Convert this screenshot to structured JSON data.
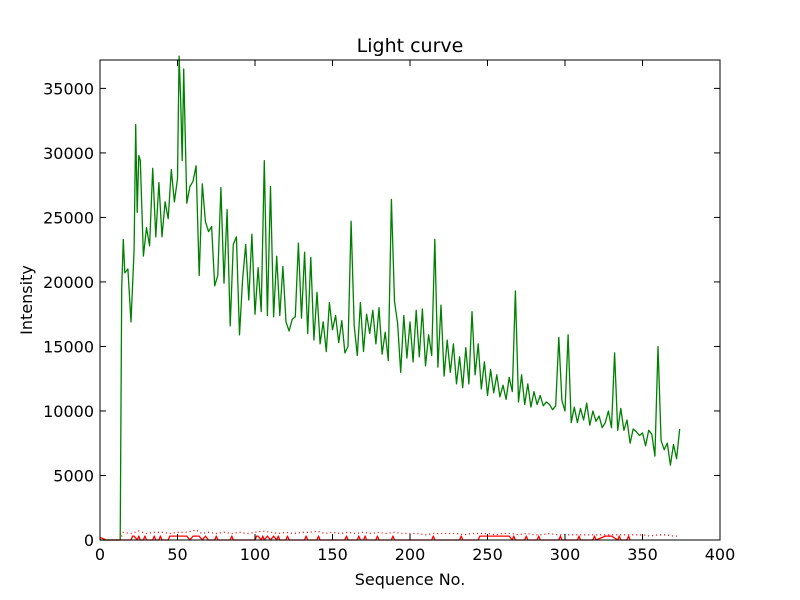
{
  "chart_data": {
    "type": "line",
    "title": "Light curve",
    "xlabel": "Sequence No.",
    "ylabel": "Intensity",
    "xlim": [
      0,
      400
    ],
    "ylim": [
      0,
      37200
    ],
    "grid": false,
    "x_ticks": [
      0,
      50,
      100,
      150,
      200,
      250,
      300,
      350,
      400
    ],
    "x_tick_labels": [
      "0",
      "50",
      "100",
      "150",
      "200",
      "250",
      "300",
      "350",
      "400"
    ],
    "y_ticks": [
      0,
      5000,
      10000,
      15000,
      20000,
      25000,
      30000,
      35000
    ],
    "y_tick_labels": [
      "0",
      "5000",
      "10000",
      "15000",
      "20000",
      "25000",
      "30000",
      "35000"
    ],
    "series": [
      {
        "color": "#008000",
        "style": "solid",
        "x": [
          0,
          5,
          10,
          13,
          14,
          15,
          16,
          18,
          20,
          22,
          23,
          24,
          25,
          26,
          28,
          30,
          32,
          34,
          36,
          38,
          40,
          42,
          44,
          46,
          48,
          50,
          51,
          52,
          53,
          54,
          56,
          58,
          60,
          62,
          64,
          66,
          68,
          70,
          72,
          74,
          76,
          78,
          80,
          82,
          84,
          86,
          88,
          90,
          92,
          94,
          96,
          98,
          100,
          102,
          104,
          106,
          108,
          110,
          112,
          114,
          116,
          118,
          120,
          122,
          124,
          126,
          128,
          130,
          132,
          134,
          136,
          138,
          140,
          142,
          144,
          146,
          148,
          150,
          152,
          154,
          156,
          158,
          160,
          162,
          164,
          166,
          168,
          170,
          172,
          174,
          176,
          178,
          180,
          182,
          184,
          186,
          188,
          190,
          192,
          194,
          196,
          198,
          200,
          202,
          204,
          206,
          208,
          210,
          212,
          214,
          216,
          218,
          220,
          222,
          224,
          226,
          228,
          230,
          232,
          234,
          236,
          238,
          240,
          242,
          244,
          246,
          248,
          250,
          252,
          254,
          256,
          258,
          260,
          262,
          264,
          266,
          268,
          270,
          272,
          274,
          276,
          278,
          280,
          282,
          284,
          286,
          288,
          290,
          292,
          294,
          296,
          298,
          300,
          302,
          304,
          306,
          308,
          310,
          312,
          314,
          316,
          318,
          320,
          322,
          324,
          326,
          328,
          330,
          332,
          334,
          336,
          338,
          340,
          342,
          344,
          346,
          348,
          350,
          352,
          354,
          356,
          358,
          360,
          362,
          364,
          366,
          368,
          370,
          372,
          374
        ],
        "y": [
          0,
          0,
          0,
          0,
          19500,
          23300,
          20700,
          21000,
          16900,
          22500,
          32200,
          25400,
          29800,
          29400,
          22000,
          24200,
          22800,
          28800,
          23500,
          27700,
          23500,
          26200,
          24900,
          28700,
          26200,
          28000,
          37500,
          34300,
          29400,
          36500,
          26100,
          27400,
          27800,
          29000,
          20500,
          27600,
          24700,
          23900,
          24300,
          19700,
          20500,
          27300,
          19900,
          25600,
          16600,
          22900,
          23500,
          15900,
          20200,
          22900,
          18600,
          23700,
          17500,
          21100,
          17700,
          29400,
          17400,
          27400,
          17300,
          22000,
          17400,
          21200,
          16900,
          16200,
          17100,
          17300,
          23000,
          17200,
          22300,
          16000,
          21900,
          15500,
          19200,
          15200,
          16900,
          14600,
          18400,
          16300,
          17400,
          15300,
          17000,
          14500,
          15000,
          24700,
          16600,
          14300,
          18400,
          14600,
          17500,
          16000,
          17800,
          15200,
          18000,
          14400,
          16100,
          13900,
          26400,
          18500,
          16800,
          13000,
          17400,
          14100,
          16900,
          13800,
          17800,
          14200,
          17900,
          13500,
          15900,
          14300,
          23300,
          13400,
          18200,
          12700,
          15500,
          13000,
          15200,
          12100,
          14200,
          11800,
          14900,
          12100,
          17700,
          12800,
          15200,
          11700,
          13800,
          11200,
          13200,
          11400,
          12800,
          11100,
          12000,
          10900,
          12600,
          11500,
          19300,
          10700,
          12800,
          10500,
          12100,
          10300,
          11500,
          10500,
          11200,
          10400,
          10700,
          10500,
          10100,
          10400,
          15700,
          10800,
          10000,
          15900,
          9100,
          10300,
          9100,
          10200,
          9300,
          10600,
          8900,
          10000,
          9200,
          9600,
          8700,
          9100,
          10000,
          8700,
          14500,
          8500,
          10200,
          8500,
          9300,
          7500,
          8600,
          8400,
          8100,
          8300,
          7300,
          8500,
          8200,
          6500,
          15000,
          7700,
          7000,
          7500,
          5800,
          7400,
          6300,
          8600
        ]
      },
      {
        "color": "#ff0000",
        "style": "solid",
        "x": [
          0,
          2,
          4,
          20,
          21,
          22,
          24,
          25,
          26,
          28,
          29,
          30,
          34,
          35,
          36,
          38,
          39,
          40,
          44,
          45,
          46,
          48,
          50,
          52,
          56,
          58,
          60,
          62,
          64,
          66,
          68,
          70,
          74,
          75,
          76,
          84,
          85,
          86,
          100,
          101,
          102,
          104,
          105,
          106,
          108,
          110,
          112,
          114,
          115,
          116,
          120,
          121,
          122,
          132,
          133,
          134,
          140,
          141,
          142,
          158,
          159,
          160,
          166,
          167,
          168,
          170,
          171,
          172,
          178,
          179,
          180,
          188,
          189,
          190,
          214,
          215,
          216,
          232,
          233,
          234,
          244,
          245,
          246,
          260,
          262,
          264,
          266,
          267,
          268,
          274,
          275,
          276,
          282,
          283,
          284,
          296,
          297,
          298,
          308,
          309,
          310,
          318,
          319,
          320,
          326,
          328,
          330,
          334,
          335,
          336,
          340,
          341,
          342
        ],
        "y": [
          200,
          100,
          0,
          0,
          300,
          300,
          0,
          300,
          0,
          0,
          300,
          0,
          0,
          300,
          0,
          0,
          300,
          0,
          0,
          300,
          300,
          300,
          300,
          300,
          300,
          0,
          300,
          300,
          300,
          0,
          300,
          0,
          0,
          300,
          0,
          0,
          300,
          0,
          0,
          300,
          300,
          0,
          300,
          0,
          300,
          0,
          300,
          0,
          300,
          0,
          0,
          300,
          0,
          0,
          300,
          0,
          0,
          300,
          0,
          0,
          300,
          0,
          0,
          300,
          0,
          0,
          300,
          0,
          0,
          300,
          0,
          0,
          300,
          0,
          0,
          300,
          0,
          0,
          300,
          0,
          0,
          300,
          300,
          300,
          300,
          300,
          0,
          300,
          0,
          0,
          300,
          0,
          0,
          300,
          0,
          0,
          300,
          0,
          0,
          300,
          0,
          0,
          300,
          0,
          300,
          300,
          300,
          0,
          300,
          0,
          0,
          300,
          0
        ]
      },
      {
        "color": "#ff0000",
        "style": "dotted",
        "x": [
          0,
          10,
          13,
          15,
          20,
          25,
          30,
          35,
          40,
          45,
          50,
          55,
          60,
          62,
          64,
          66,
          70,
          75,
          80,
          85,
          90,
          95,
          100,
          105,
          110,
          115,
          120,
          125,
          130,
          135,
          140,
          145,
          150,
          155,
          160,
          165,
          170,
          175,
          180,
          185,
          190,
          195,
          200,
          205,
          210,
          215,
          220,
          225,
          230,
          235,
          240,
          245,
          250,
          255,
          260,
          265,
          270,
          275,
          280,
          285,
          290,
          295,
          300,
          305,
          310,
          315,
          320,
          325,
          330,
          335,
          340,
          345,
          350,
          355,
          360,
          365,
          370,
          374
        ],
        "y": [
          0,
          0,
          0,
          600,
          500,
          700,
          500,
          600,
          600,
          500,
          600,
          600,
          700,
          800,
          600,
          500,
          600,
          500,
          600,
          500,
          600,
          500,
          600,
          700,
          600,
          500,
          600,
          500,
          600,
          600,
          700,
          500,
          600,
          500,
          600,
          500,
          600,
          500,
          600,
          500,
          600,
          500,
          500,
          500,
          400,
          500,
          500,
          500,
          500,
          400,
          500,
          500,
          500,
          400,
          500,
          500,
          400,
          500,
          400,
          400,
          500,
          400,
          400,
          400,
          400,
          400,
          400,
          400,
          400,
          400,
          400,
          400,
          400,
          300,
          400,
          400,
          300,
          300
        ]
      }
    ]
  }
}
